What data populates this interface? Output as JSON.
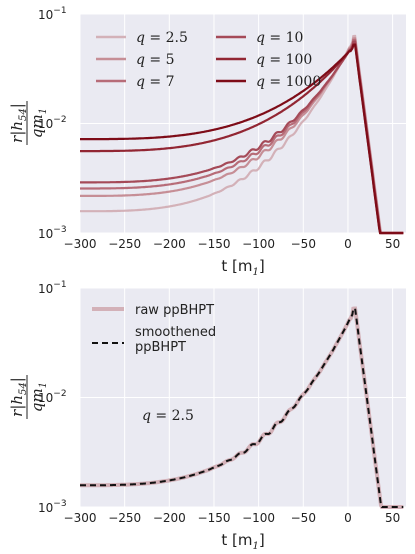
{
  "chart_data": [
    {
      "type": "line",
      "xlabel_text": "t",
      "xlabel_unit": "[m",
      "xlabel_unit_sub": "1",
      "xlabel_unit_close": "]",
      "ylabel_num": "r|h",
      "ylabel_num_sub": "54",
      "ylabel_num_close": "|",
      "ylabel_den": "qm",
      "ylabel_den_sub": "1",
      "yscale": "log",
      "xlim": [
        -300,
        65
      ],
      "ylim": [
        0.001,
        0.1
      ],
      "grid": true,
      "legend_position": "top",
      "x_ticks": [
        "−300",
        "−250",
        "−200",
        "−150",
        "−100",
        "−50",
        "0",
        "50"
      ],
      "y_ticks": [
        {
          "base": "10",
          "exp": "−1"
        },
        {
          "base": "10",
          "exp": "−2"
        },
        {
          "base": "10",
          "exp": "−3"
        }
      ],
      "series": [
        {
          "name": "q = 2.5",
          "label_var": "q",
          "label_val": "= 2.5",
          "color": "#d3b1b8",
          "start": 0.00158,
          "peak": 0.063
        },
        {
          "name": "q = 5",
          "label_var": "q",
          "label_val": "= 5",
          "color": "#c68e96",
          "start": 0.00218,
          "peak": 0.06
        },
        {
          "name": "q = 7",
          "label_var": "q",
          "label_val": "= 7",
          "color": "#b76c78",
          "start": 0.00255,
          "peak": 0.058
        },
        {
          "name": "q = 10",
          "label_var": "q",
          "label_val": "= 10",
          "color": "#a54a58",
          "start": 0.0029,
          "peak": 0.056
        },
        {
          "name": "q = 100",
          "label_var": "q",
          "label_val": "= 100",
          "color": "#922633",
          "start": 0.0056,
          "peak": 0.053
        },
        {
          "name": "q = 1000",
          "label_var": "q",
          "label_val": "= 1000",
          "color": "#7e0c18",
          "start": 0.0072,
          "peak": 0.052
        }
      ]
    },
    {
      "type": "line",
      "xlabel_text": "t",
      "xlabel_unit": "[m",
      "xlabel_unit_sub": "1",
      "xlabel_unit_close": "]",
      "ylabel_num": "r|h",
      "ylabel_num_sub": "54",
      "ylabel_num_close": "|",
      "ylabel_den": "qm",
      "ylabel_den_sub": "1",
      "yscale": "log",
      "xlim": [
        -300,
        65
      ],
      "ylim": [
        0.001,
        0.1
      ],
      "grid": true,
      "legend_position": "top-left",
      "x_ticks": [
        "−300",
        "−250",
        "−200",
        "−150",
        "−100",
        "−50",
        "0",
        "50"
      ],
      "y_ticks": [
        {
          "base": "10",
          "exp": "−1"
        },
        {
          "base": "10",
          "exp": "−2"
        },
        {
          "base": "10",
          "exp": "−3"
        }
      ],
      "annotation": {
        "var": "q",
        "val": "= 2.5",
        "x": -200,
        "y": 0.006
      },
      "series": [
        {
          "name": "raw ppBHPT",
          "color": "#d3b1b8",
          "style": "solid",
          "start": 0.00158,
          "peak": 0.065
        },
        {
          "name": "smoothened ppBHPT",
          "name_line1": "smoothened",
          "name_line2": "ppBHPT",
          "color": "#111111",
          "style": "dashed",
          "start": 0.00158,
          "peak": 0.065
        }
      ]
    }
  ]
}
